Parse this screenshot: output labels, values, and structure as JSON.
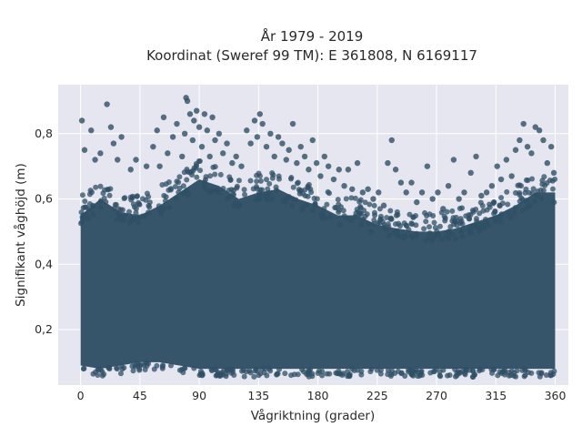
{
  "chart_data": {
    "type": "scatter",
    "title": "År 1979 - 2019",
    "subtitle": "Koordinat (Sweref 99 TM): E 361808, N 6169117",
    "xlabel": "Vågriktning (grader)",
    "ylabel": "Signifikant våghöjd (m)",
    "xlim": [
      -17,
      370
    ],
    "ylim": [
      0.03,
      0.95
    ],
    "x_ticks": [
      0,
      45,
      90,
      135,
      180,
      225,
      270,
      315,
      360
    ],
    "x_tick_labels": [
      "0",
      "45",
      "90",
      "135",
      "180",
      "225",
      "270",
      "315",
      "360"
    ],
    "y_ticks": [
      0.2,
      0.4,
      0.6,
      0.8
    ],
    "y_tick_labels": [
      "0,2",
      "0,4",
      "0,6",
      "0,8"
    ],
    "grid": true,
    "marker_color": "#2f4f65",
    "plot_background": "#e5e6ef",
    "dense_band": {
      "x_range": [
        0,
        360
      ],
      "envelope": [
        {
          "x": 0,
          "y_min": 0.09,
          "y_max": 0.55
        },
        {
          "x": 15,
          "y_min": 0.08,
          "y_max": 0.6
        },
        {
          "x": 30,
          "y_min": 0.09,
          "y_max": 0.56
        },
        {
          "x": 45,
          "y_min": 0.1,
          "y_max": 0.55
        },
        {
          "x": 60,
          "y_min": 0.1,
          "y_max": 0.58
        },
        {
          "x": 75,
          "y_min": 0.09,
          "y_max": 0.62
        },
        {
          "x": 90,
          "y_min": 0.08,
          "y_max": 0.66
        },
        {
          "x": 105,
          "y_min": 0.08,
          "y_max": 0.64
        },
        {
          "x": 120,
          "y_min": 0.08,
          "y_max": 0.6
        },
        {
          "x": 135,
          "y_min": 0.08,
          "y_max": 0.62
        },
        {
          "x": 150,
          "y_min": 0.08,
          "y_max": 0.63
        },
        {
          "x": 165,
          "y_min": 0.08,
          "y_max": 0.6
        },
        {
          "x": 180,
          "y_min": 0.08,
          "y_max": 0.58
        },
        {
          "x": 195,
          "y_min": 0.08,
          "y_max": 0.55
        },
        {
          "x": 210,
          "y_min": 0.08,
          "y_max": 0.55
        },
        {
          "x": 225,
          "y_min": 0.08,
          "y_max": 0.52
        },
        {
          "x": 240,
          "y_min": 0.08,
          "y_max": 0.51
        },
        {
          "x": 255,
          "y_min": 0.08,
          "y_max": 0.5
        },
        {
          "x": 270,
          "y_min": 0.08,
          "y_max": 0.5
        },
        {
          "x": 285,
          "y_min": 0.08,
          "y_max": 0.51
        },
        {
          "x": 300,
          "y_min": 0.08,
          "y_max": 0.53
        },
        {
          "x": 315,
          "y_min": 0.08,
          "y_max": 0.55
        },
        {
          "x": 330,
          "y_min": 0.08,
          "y_max": 0.58
        },
        {
          "x": 345,
          "y_min": 0.08,
          "y_max": 0.62
        },
        {
          "x": 360,
          "y_min": 0.08,
          "y_max": 0.62
        }
      ]
    },
    "outlier_points": [
      {
        "x": 1,
        "y": 0.84
      },
      {
        "x": 3,
        "y": 0.75
      },
      {
        "x": 8,
        "y": 0.81
      },
      {
        "x": 11,
        "y": 0.72
      },
      {
        "x": 15,
        "y": 0.74
      },
      {
        "x": 20,
        "y": 0.89
      },
      {
        "x": 23,
        "y": 0.82
      },
      {
        "x": 25,
        "y": 0.77
      },
      {
        "x": 28,
        "y": 0.72
      },
      {
        "x": 31,
        "y": 0.79
      },
      {
        "x": 38,
        "y": 0.69
      },
      {
        "x": 42,
        "y": 0.72
      },
      {
        "x": 50,
        "y": 0.7
      },
      {
        "x": 55,
        "y": 0.76
      },
      {
        "x": 58,
        "y": 0.81
      },
      {
        "x": 60,
        "y": 0.7
      },
      {
        "x": 63,
        "y": 0.85
      },
      {
        "x": 66,
        "y": 0.74
      },
      {
        "x": 70,
        "y": 0.79
      },
      {
        "x": 73,
        "y": 0.83
      },
      {
        "x": 77,
        "y": 0.73
      },
      {
        "x": 79,
        "y": 0.8
      },
      {
        "x": 80,
        "y": 0.91
      },
      {
        "x": 81,
        "y": 0.9
      },
      {
        "x": 83,
        "y": 0.86
      },
      {
        "x": 85,
        "y": 0.78
      },
      {
        "x": 86,
        "y": 0.84
      },
      {
        "x": 88,
        "y": 0.87
      },
      {
        "x": 90,
        "y": 0.82
      },
      {
        "x": 92,
        "y": 0.76
      },
      {
        "x": 94,
        "y": 0.86
      },
      {
        "x": 96,
        "y": 0.81
      },
      {
        "x": 98,
        "y": 0.73
      },
      {
        "x": 100,
        "y": 0.85
      },
      {
        "x": 102,
        "y": 0.78
      },
      {
        "x": 105,
        "y": 0.8
      },
      {
        "x": 108,
        "y": 0.74
      },
      {
        "x": 111,
        "y": 0.77
      },
      {
        "x": 115,
        "y": 0.71
      },
      {
        "x": 118,
        "y": 0.73
      },
      {
        "x": 122,
        "y": 0.7
      },
      {
        "x": 126,
        "y": 0.81
      },
      {
        "x": 129,
        "y": 0.77
      },
      {
        "x": 132,
        "y": 0.84
      },
      {
        "x": 134,
        "y": 0.79
      },
      {
        "x": 136,
        "y": 0.86
      },
      {
        "x": 138,
        "y": 0.83
      },
      {
        "x": 141,
        "y": 0.76
      },
      {
        "x": 144,
        "y": 0.8
      },
      {
        "x": 147,
        "y": 0.73
      },
      {
        "x": 150,
        "y": 0.79
      },
      {
        "x": 153,
        "y": 0.77
      },
      {
        "x": 156,
        "y": 0.72
      },
      {
        "x": 158,
        "y": 0.75
      },
      {
        "x": 161,
        "y": 0.83
      },
      {
        "x": 164,
        "y": 0.71
      },
      {
        "x": 167,
        "y": 0.76
      },
      {
        "x": 170,
        "y": 0.73
      },
      {
        "x": 173,
        "y": 0.69
      },
      {
        "x": 176,
        "y": 0.78
      },
      {
        "x": 179,
        "y": 0.71
      },
      {
        "x": 182,
        "y": 0.67
      },
      {
        "x": 185,
        "y": 0.73
      },
      {
        "x": 188,
        "y": 0.7
      },
      {
        "x": 192,
        "y": 0.66
      },
      {
        "x": 196,
        "y": 0.69
      },
      {
        "x": 200,
        "y": 0.64
      },
      {
        "x": 203,
        "y": 0.69
      },
      {
        "x": 206,
        "y": 0.63
      },
      {
        "x": 210,
        "y": 0.71
      },
      {
        "x": 214,
        "y": 0.62
      },
      {
        "x": 218,
        "y": 0.63
      },
      {
        "x": 222,
        "y": 0.6
      },
      {
        "x": 226,
        "y": 0.62
      },
      {
        "x": 230,
        "y": 0.58
      },
      {
        "x": 233,
        "y": 0.71
      },
      {
        "x": 236,
        "y": 0.78
      },
      {
        "x": 239,
        "y": 0.69
      },
      {
        "x": 243,
        "y": 0.65
      },
      {
        "x": 247,
        "y": 0.62
      },
      {
        "x": 251,
        "y": 0.65
      },
      {
        "x": 255,
        "y": 0.59
      },
      {
        "x": 259,
        "y": 0.62
      },
      {
        "x": 263,
        "y": 0.7
      },
      {
        "x": 267,
        "y": 0.6
      },
      {
        "x": 271,
        "y": 0.62
      },
      {
        "x": 275,
        "y": 0.57
      },
      {
        "x": 279,
        "y": 0.64
      },
      {
        "x": 283,
        "y": 0.72
      },
      {
        "x": 287,
        "y": 0.6
      },
      {
        "x": 291,
        "y": 0.62
      },
      {
        "x": 296,
        "y": 0.68
      },
      {
        "x": 300,
        "y": 0.73
      },
      {
        "x": 304,
        "y": 0.61
      },
      {
        "x": 308,
        "y": 0.62
      },
      {
        "x": 312,
        "y": 0.64
      },
      {
        "x": 316,
        "y": 0.7
      },
      {
        "x": 319,
        "y": 0.66
      },
      {
        "x": 323,
        "y": 0.72
      },
      {
        "x": 327,
        "y": 0.67
      },
      {
        "x": 330,
        "y": 0.75
      },
      {
        "x": 333,
        "y": 0.78
      },
      {
        "x": 336,
        "y": 0.83
      },
      {
        "x": 339,
        "y": 0.76
      },
      {
        "x": 342,
        "y": 0.74
      },
      {
        "x": 345,
        "y": 0.82
      },
      {
        "x": 348,
        "y": 0.81
      },
      {
        "x": 351,
        "y": 0.78
      },
      {
        "x": 354,
        "y": 0.71
      },
      {
        "x": 357,
        "y": 0.76
      },
      {
        "x": 359,
        "y": 0.68
      }
    ]
  }
}
